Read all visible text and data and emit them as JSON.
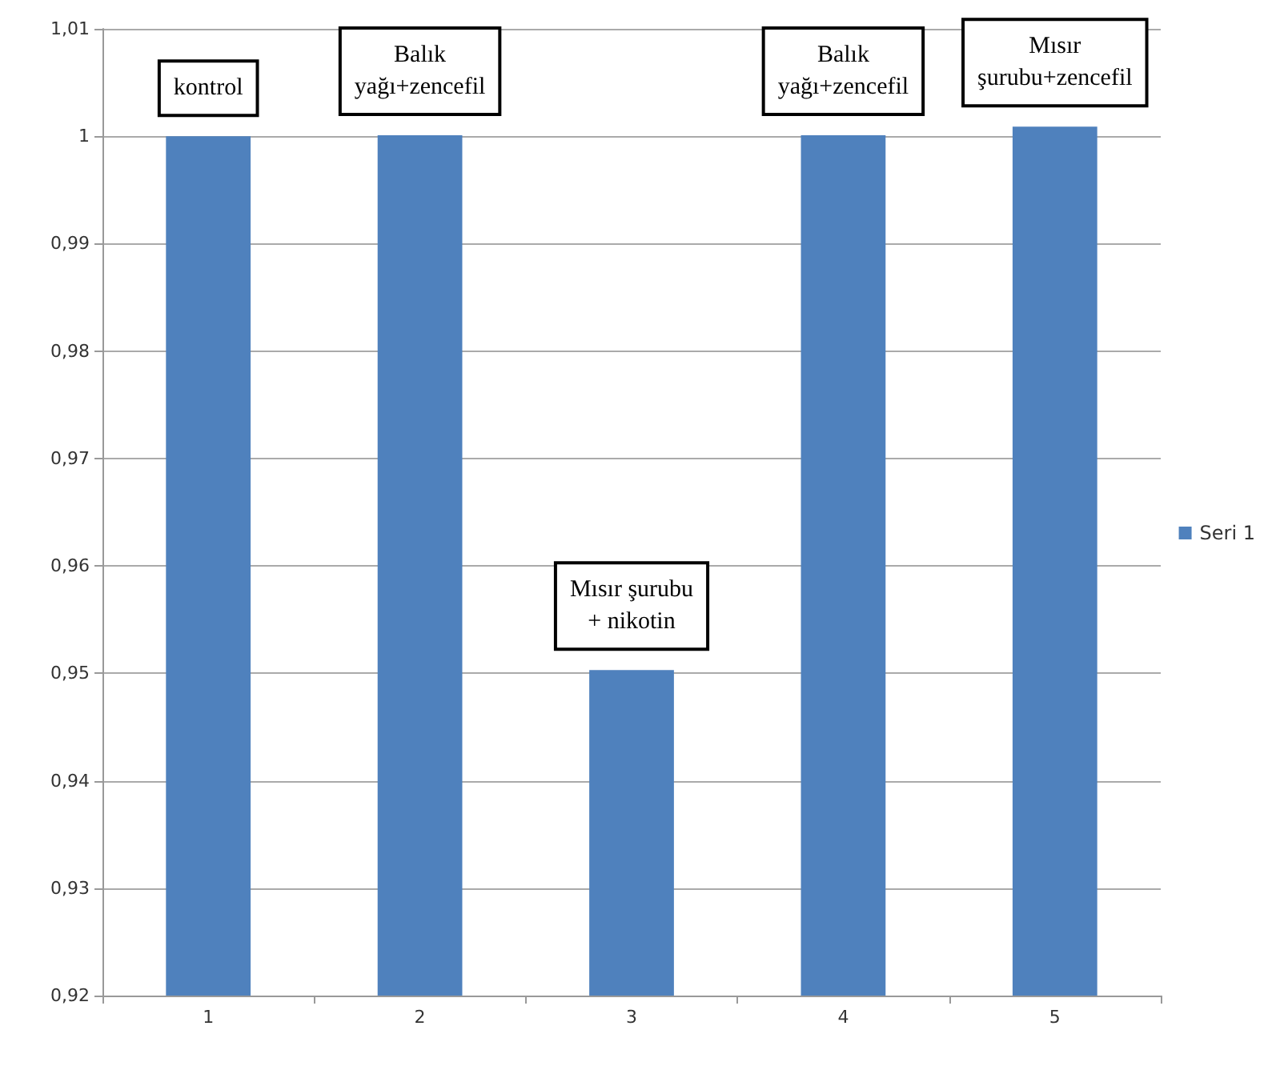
{
  "chart_data": {
    "type": "bar",
    "categories": [
      "1",
      "2",
      "3",
      "4",
      "5"
    ],
    "series": [
      {
        "name": "Seri 1",
        "color": "#4f81bd",
        "values": [
          1.0,
          1.0001,
          0.9503,
          1.0001,
          1.0009
        ]
      }
    ],
    "ylim": [
      0.92,
      1.01
    ],
    "yticks": [
      {
        "value": 0.92,
        "label": "0,92"
      },
      {
        "value": 0.93,
        "label": "0,93"
      },
      {
        "value": 0.94,
        "label": "0,94"
      },
      {
        "value": 0.95,
        "label": "0,95"
      },
      {
        "value": 0.96,
        "label": "0,96"
      },
      {
        "value": 0.97,
        "label": "0,97"
      },
      {
        "value": 0.98,
        "label": "0,98"
      },
      {
        "value": 0.99,
        "label": "0,99"
      },
      1,
      {
        "value": 1.01,
        "label": "1,01"
      }
    ],
    "grid": "y",
    "legend": "right",
    "annotations": [
      "kontrol",
      "Balık\nyağı+zencefil",
      "Mısır şurubu\n+ nikotin",
      "Balık\nyağı+zencefil",
      "Mısır\nşurubu+zencefil"
    ]
  }
}
